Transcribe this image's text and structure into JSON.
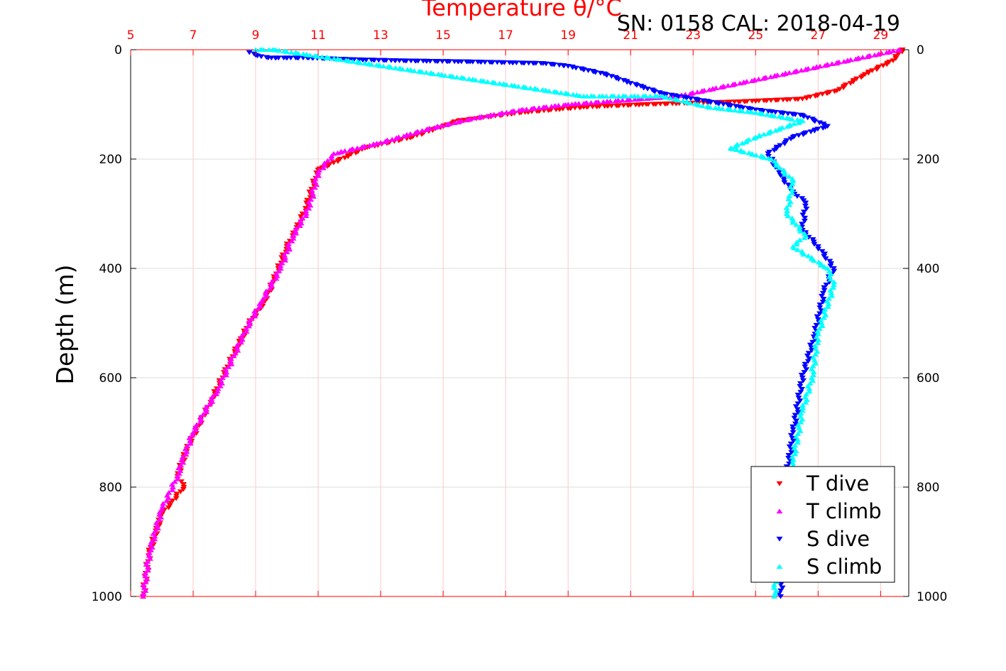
{
  "chart_data": {
    "type": "scatter",
    "title": "Temperature θ/°C",
    "subtitle": "SN: 0158  CAL: 2018-04-19",
    "ylabel": "Depth (m)",
    "xlim": [
      5,
      29.9
    ],
    "ylim": [
      0,
      1000
    ],
    "y_inverted": true,
    "x_ticks": [
      "5",
      "7",
      "9",
      "11",
      "13",
      "15",
      "17",
      "19",
      "21",
      "23",
      "25",
      "27",
      "29"
    ],
    "y_ticks": [
      "0",
      "200",
      "400",
      "600",
      "800",
      "1000"
    ],
    "grid": true,
    "legend_position": "bottom-right",
    "series": [
      {
        "name": "T dive",
        "marker": "triangle-down",
        "color": "#ff0000",
        "x": [
          29.7,
          29.4,
          28.5,
          27.6,
          26.5,
          24.5,
          21.5,
          19.5,
          17.5,
          15.5,
          14.0,
          12.5,
          11.0,
          10.6,
          10.3,
          10.0,
          9.6,
          9.3,
          8.8,
          8.1,
          7.6,
          6.8,
          6.5,
          6.7,
          6.0,
          5.6,
          5.4
        ],
        "y": [
          0,
          20,
          45,
          75,
          90,
          95,
          100,
          105,
          115,
          130,
          160,
          180,
          220,
          290,
          330,
          360,
          420,
          460,
          500,
          580,
          640,
          730,
          780,
          800,
          850,
          920,
          1000
        ]
      },
      {
        "name": "T climb",
        "marker": "triangle-up",
        "color": "#ff00ff",
        "x": [
          29.6,
          22.5,
          19.0,
          17.5,
          16.0,
          14.5,
          13.0,
          11.5,
          11.0,
          10.7,
          10.2,
          9.8,
          9.2,
          8.7,
          8.3,
          7.8,
          7.0,
          6.6,
          6.5,
          6.0,
          5.6,
          5.4
        ],
        "y": [
          0,
          85,
          100,
          110,
          125,
          145,
          170,
          190,
          225,
          290,
          340,
          400,
          460,
          510,
          560,
          620,
          700,
          760,
          780,
          840,
          920,
          1000
        ]
      },
      {
        "name": "S dive",
        "marker": "triangle-down",
        "color": "#0000ff",
        "x": [
          8.8,
          9.0,
          9.4,
          10.7,
          12.1,
          13.6,
          15.8,
          18.2,
          19.0,
          20.2,
          21.2,
          22.0,
          23.5,
          25.0,
          26.5,
          27.3,
          26.2,
          25.4,
          25.8,
          26.2,
          26.6,
          26.5,
          27.0,
          27.5,
          27.2,
          26.9,
          26.5,
          26.2,
          25.9,
          25.8
        ],
        "y": [
          5,
          10,
          15,
          15,
          18,
          20,
          22,
          25,
          30,
          45,
          65,
          80,
          95,
          110,
          120,
          140,
          160,
          190,
          230,
          260,
          280,
          330,
          360,
          400,
          440,
          520,
          600,
          700,
          820,
          1000
        ]
      },
      {
        "name": "S climb",
        "marker": "triangle-up",
        "color": "#00ffff",
        "x": [
          9.0,
          9.6,
          19.5,
          22.0,
          23.5,
          25.0,
          26.0,
          26.5,
          25.0,
          24.2,
          25.5,
          26.2,
          26.0,
          26.6,
          26.2,
          27.3,
          27.5,
          27.0,
          26.8,
          26.5,
          26.2,
          25.8,
          25.6
        ],
        "y": [
          0,
          0,
          85,
          85,
          105,
          115,
          125,
          130,
          160,
          180,
          200,
          240,
          300,
          340,
          360,
          400,
          430,
          520,
          600,
          660,
          750,
          850,
          1000
        ]
      }
    ]
  }
}
